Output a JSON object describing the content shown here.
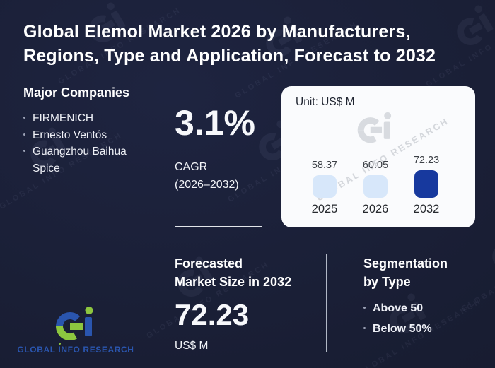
{
  "title": {
    "line1": "Global Elemol Market 2026 by Manufacturers,",
    "line2": "Regions, Type and Application, Forecast to 2032"
  },
  "companies": {
    "heading": "Major Companies",
    "items": [
      "FIRMENICH",
      "Ernesto Ventós",
      "Guangzhou Baihua Spice"
    ]
  },
  "cagr": {
    "value": "3.1%",
    "label": "CAGR",
    "period": "(2026–2032)"
  },
  "chart_data": {
    "type": "bar",
    "unit_label": "Unit: US$ M",
    "categories": [
      "2025",
      "2026",
      "2032"
    ],
    "values": [
      58.37,
      60.05,
      72.23
    ],
    "highlight_category": "2032",
    "value_labels": true,
    "legend": "none",
    "grid": false,
    "colors": {
      "bar": "#d7e7fa",
      "bar_highlight": "#17399e"
    }
  },
  "forecast": {
    "heading_line1": "Forecasted",
    "heading_line2": "Market Size in 2032",
    "value": "72.23",
    "unit": "US$ M"
  },
  "segmentation": {
    "heading_line1": "Segmentation",
    "heading_line2": "by Type",
    "items": [
      "Above 50",
      "Below 50%"
    ]
  },
  "brand": {
    "word1": "GLOBAL",
    "word2": "INFO",
    "word3": "RESEARCH",
    "watermark_text": "GLOBAL INFO RESEARCH"
  },
  "colors": {
    "background": "#1a1f36",
    "card_bg": "#fafbfd",
    "accent_green": "#8dc63f",
    "accent_blue": "#2a55ae",
    "bar_light": "#d7e7fa",
    "bar_dark": "#17399e"
  }
}
